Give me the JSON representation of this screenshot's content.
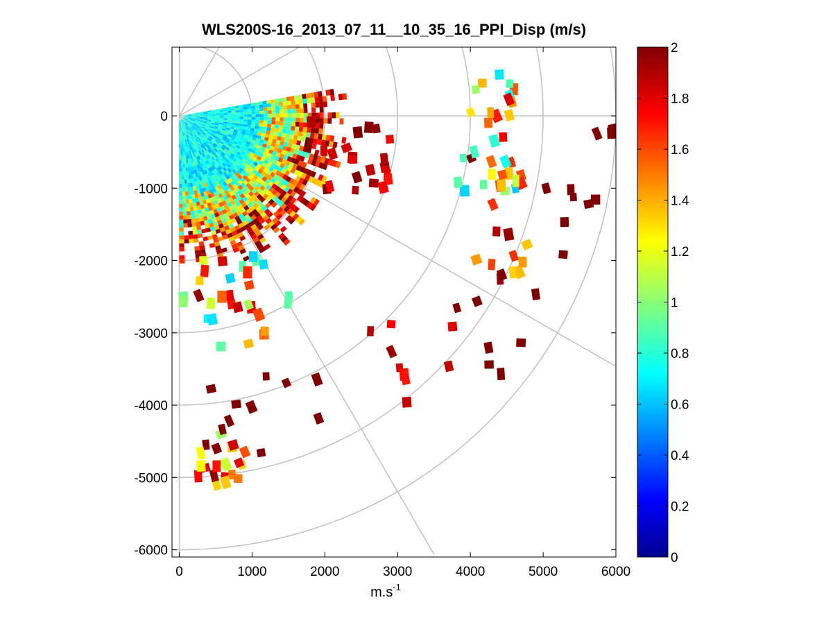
{
  "chart_data": {
    "type": "heatmap",
    "subtype": "polar-sector-scan",
    "title": "WLS200S-16_2013_07_11__10_35_16_PPI_Disp (m/s)",
    "xlabel": "m.s",
    "xlabel_superscript": "-1",
    "ylabel": "",
    "xlim": [
      -100,
      6000
    ],
    "ylim": [
      -6100,
      950
    ],
    "x_ticks": [
      0,
      1000,
      2000,
      3000,
      4000,
      5000,
      6000
    ],
    "x_tick_labels": [
      "0",
      "1000",
      "2000",
      "3000",
      "4000",
      "5000",
      "6000"
    ],
    "y_ticks": [
      0,
      -1000,
      -2000,
      -3000,
      -4000,
      -5000,
      -6000
    ],
    "y_tick_labels": [
      "0",
      "-1000",
      "-2000",
      "-3000",
      "-4000",
      "-5000",
      "-6000"
    ],
    "colorbar": {
      "colormap": "jet",
      "range": [
        0,
        2
      ],
      "ticks": [
        0,
        0.2,
        0.4,
        0.6,
        0.8,
        1,
        1.2,
        1.4,
        1.6,
        1.8,
        2
      ],
      "tick_labels": [
        "0",
        "0.2",
        "0.4",
        "0.6",
        "0.8",
        "1",
        "1.2",
        "1.4",
        "1.6",
        "1.8",
        "2"
      ],
      "stops": [
        "#00008f",
        "#0000ff",
        "#00ffff",
        "#ffff00",
        "#ff0000",
        "#800000"
      ]
    },
    "polar_grid": {
      "range_rings": [
        1000,
        2000,
        3000,
        4000,
        5000,
        6000
      ],
      "azimuth_spokes_deg": [
        -60,
        -30,
        0,
        30,
        60
      ],
      "grid_color": "#c0c0c0"
    },
    "scan_sector_deg": [
      10,
      -90
    ],
    "near_field_max_range": 2300,
    "clusters": [
      {
        "x": 4400,
        "y": 150,
        "r": 450,
        "n": 14,
        "v": [
          0.55,
          2.0
        ]
      },
      {
        "x": 4300,
        "y": -800,
        "r": 500,
        "n": 22,
        "v": [
          0.6,
          2.0
        ]
      },
      {
        "x": 4450,
        "y": -1900,
        "r": 400,
        "n": 10,
        "v": [
          1.0,
          2.0
        ]
      },
      {
        "x": 5200,
        "y": -1300,
        "r": 700,
        "n": 7,
        "v": [
          2.0,
          2.0
        ]
      },
      {
        "x": 5800,
        "y": -300,
        "r": 200,
        "n": 3,
        "v": [
          2.0,
          2.0
        ]
      },
      {
        "x": 550,
        "y": -4750,
        "r": 380,
        "n": 20,
        "v": [
          1.0,
          2.0
        ]
      },
      {
        "x": 800,
        "y": -2500,
        "r": 750,
        "n": 30,
        "v": [
          0.5,
          2.0
        ]
      },
      {
        "x": 3300,
        "y": -3200,
        "r": 800,
        "n": 9,
        "v": [
          1.6,
          2.0
        ]
      },
      {
        "x": 4200,
        "y": -2700,
        "r": 900,
        "n": 8,
        "v": [
          2.0,
          2.0
        ]
      },
      {
        "x": 2300,
        "y": -500,
        "r": 700,
        "n": 22,
        "v": [
          1.7,
          2.0
        ]
      },
      {
        "x": 1200,
        "y": -4200,
        "r": 900,
        "n": 10,
        "v": [
          2.0,
          2.0
        ]
      }
    ]
  }
}
